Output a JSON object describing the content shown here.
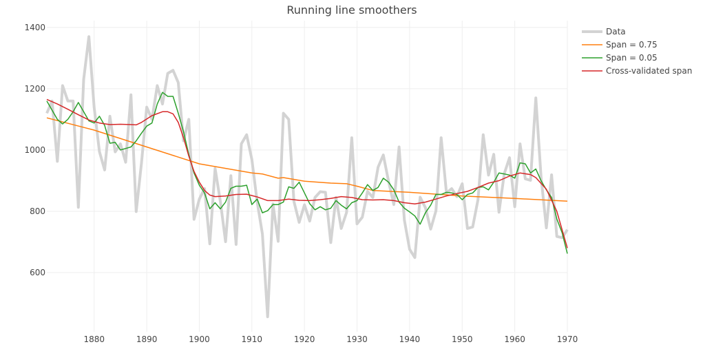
{
  "chart_data": {
    "type": "line",
    "title": "Running line smoothers",
    "xlabel": "",
    "ylabel": "",
    "xlim": [
      1871,
      1970
    ],
    "ylim": [
      407,
      1422
    ],
    "x_ticks": [
      1880,
      1890,
      1900,
      1910,
      1920,
      1930,
      1940,
      1950,
      1960,
      1970
    ],
    "y_ticks": [
      600,
      800,
      1000,
      1200,
      1400
    ],
    "grid": true,
    "legend_position": "top-right",
    "series": [
      {
        "name": "Data",
        "color": "#d3d3d3",
        "x_start": 1871,
        "values": [
          1120,
          1160,
          963,
          1210,
          1160,
          1160,
          813,
          1230,
          1370,
          1140,
          995,
          935,
          1110,
          994,
          1020,
          960,
          1180,
          799,
          958,
          1140,
          1100,
          1210,
          1150,
          1250,
          1260,
          1220,
          1030,
          1100,
          774,
          840,
          874,
          694,
          940,
          833,
          701,
          916,
          692,
          1020,
          1050,
          969,
          831,
          726,
          456,
          824,
          702,
          1120,
          1100,
          832,
          764,
          821,
          768,
          845,
          864,
          862,
          698,
          845,
          744,
          796,
          1040,
          759,
          781,
          865,
          845,
          944,
          984,
          897,
          822,
          1010,
          771,
          676,
          649,
          846,
          812,
          742,
          801,
          1040,
          860,
          874,
          848,
          890,
          744,
          749,
          838,
          1050,
          918,
          986,
          797,
          923,
          975,
          815,
          1020,
          906,
          901,
          1170,
          912,
          746,
          919,
          718,
          714,
          740
        ]
      },
      {
        "name": "Span = 0.75",
        "color": "#ff7f0e",
        "x": [
          1871,
          1880,
          1890,
          1900,
          1910,
          1912,
          1915,
          1916,
          1920,
          1925,
          1928,
          1930,
          1933,
          1940,
          1950,
          1960,
          1970
        ],
        "values": [
          1105,
          1065,
          1010,
          955,
          925,
          922,
          908,
          910,
          898,
          892,
          890,
          882,
          868,
          862,
          850,
          842,
          833
        ]
      },
      {
        "name": "Span = 0.05",
        "color": "#2ca02c",
        "x_start": 1871,
        "values": [
          1160,
          1130,
          1100,
          1085,
          1100,
          1125,
          1155,
          1125,
          1095,
          1088,
          1110,
          1080,
          1022,
          1025,
          1000,
          1005,
          1010,
          1030,
          1055,
          1078,
          1088,
          1150,
          1188,
          1175,
          1175,
          1120,
          1060,
          985,
          925,
          885,
          860,
          808,
          828,
          808,
          830,
          875,
          882,
          882,
          885,
          822,
          840,
          795,
          802,
          822,
          822,
          830,
          880,
          875,
          895,
          860,
          825,
          805,
          815,
          805,
          810,
          835,
          820,
          808,
          828,
          835,
          860,
          887,
          868,
          878,
          908,
          895,
          870,
          830,
          810,
          798,
          785,
          758,
          795,
          820,
          855,
          855,
          862,
          860,
          855,
          838,
          855,
          860,
          878,
          880,
          870,
          895,
          925,
          922,
          918,
          908,
          958,
          955,
          925,
          938,
          900,
          870,
          845,
          775,
          730,
          662
        ]
      },
      {
        "name": "Cross-validated span",
        "color": "#d62728",
        "x": [
          1871,
          1873,
          1875,
          1877,
          1879,
          1881,
          1883,
          1885,
          1887,
          1888,
          1889,
          1891,
          1893,
          1894,
          1895,
          1896,
          1897,
          1898,
          1899,
          1900,
          1901,
          1902,
          1903,
          1905,
          1907,
          1909,
          1911,
          1913,
          1915,
          1917,
          1919,
          1921,
          1923,
          1925,
          1927,
          1929,
          1931,
          1933,
          1935,
          1937,
          1939,
          1941,
          1943,
          1945,
          1947,
          1949,
          1951,
          1953,
          1955,
          1957,
          1959,
          1961,
          1963,
          1964,
          1966,
          1968,
          1970
        ],
        "values": [
          1165,
          1150,
          1133,
          1115,
          1098,
          1088,
          1083,
          1084,
          1083,
          1082,
          1090,
          1112,
          1125,
          1125,
          1118,
          1090,
          1040,
          980,
          930,
          895,
          868,
          853,
          848,
          850,
          855,
          856,
          847,
          835,
          835,
          840,
          836,
          835,
          838,
          842,
          848,
          845,
          838,
          837,
          838,
          835,
          828,
          824,
          830,
          840,
          850,
          858,
          865,
          878,
          892,
          900,
          915,
          925,
          920,
          910,
          872,
          800,
          680
        ]
      }
    ]
  }
}
